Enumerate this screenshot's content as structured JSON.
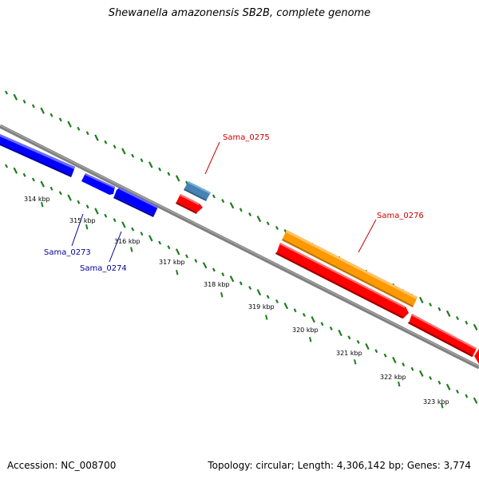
{
  "title": "Shewanella amazonensis SB2B, complete genome",
  "footer": {
    "accession": "Accession: NC_008700",
    "summary": "Topology: circular; Length: 4,306,142 bp; Genes: 3,774"
  },
  "scale_labels": [
    "314 kbp",
    "315 kbp",
    "316 kbp",
    "317 kbp",
    "318 kbp",
    "319 kbp",
    "320 kbp",
    "321 kbp",
    "322 kbp",
    "323 kbp"
  ],
  "gene_labels": [
    "Sama_0273",
    "Sama_0274",
    "Sama_0275",
    "Sama_0276"
  ],
  "colors": {
    "blue_gene": "#0000ff",
    "red_gene": "#ff0000",
    "steel_gene": "#4682b4",
    "orange_gene": "#ff9900",
    "backbone": "#808080",
    "gc_dots": "#1e7d1e",
    "label_blue": "#000099",
    "label_red": "#cc0000"
  }
}
